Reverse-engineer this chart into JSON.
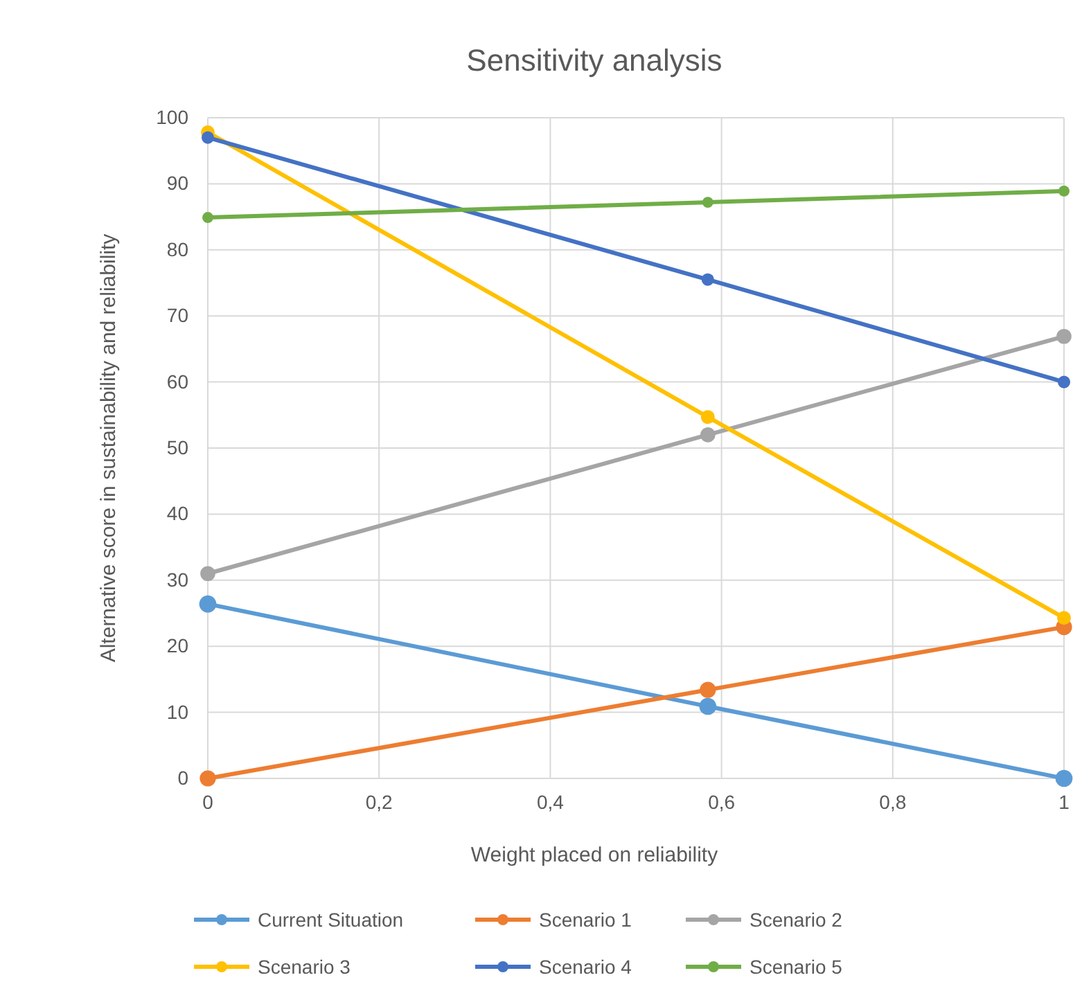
{
  "chart_data": {
    "type": "line",
    "title": "Sensitivity analysis",
    "xlabel": "Weight placed on reliability",
    "ylabel": "Alternative score in sustainability and reliability",
    "x": [
      0,
      0.584,
      1
    ],
    "series": [
      {
        "name": "Current Situation",
        "color": "#5b9bd5",
        "values": [
          26.4,
          10.9,
          0
        ]
      },
      {
        "name": "Scenario 1",
        "color": "#ed7d31",
        "values": [
          0,
          13.4,
          22.9
        ]
      },
      {
        "name": "Scenario 2",
        "color": "#a5a5a5",
        "values": [
          31,
          52,
          66.9
        ]
      },
      {
        "name": "Scenario 3",
        "color": "#ffc000",
        "values": [
          97.8,
          54.7,
          24.3
        ]
      },
      {
        "name": "Scenario 4",
        "color": "#4472c4",
        "values": [
          97,
          75.5,
          60
        ]
      },
      {
        "name": "Scenario 5",
        "color": "#70ad47",
        "values": [
          84.9,
          87.2,
          88.9
        ]
      }
    ],
    "xlim": [
      0,
      1
    ],
    "xticks": [
      0,
      {
        "value": 0.2,
        "label": "0,2"
      },
      {
        "value": 0.4,
        "label": "0,4"
      },
      {
        "value": 0.6,
        "label": "0,6"
      },
      {
        "value": 0.8,
        "label": "0,8"
      },
      1
    ],
    "ylim": [
      0,
      100
    ],
    "yticks": [
      0,
      10,
      20,
      30,
      40,
      50,
      60,
      70,
      80,
      90,
      100
    ],
    "grid": true,
    "legend": "bottom",
    "marker": "circle",
    "line_style": "solid"
  }
}
